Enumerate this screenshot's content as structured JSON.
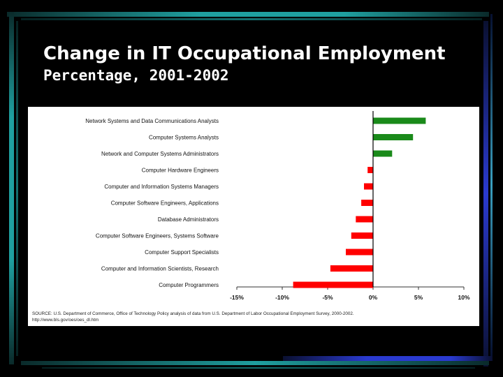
{
  "slide": {
    "title": "Change in IT Occupational Employment",
    "subtitle": "Percentage, 2001-2002",
    "source_line1": "SOURCE: U.S. Department of Commerce, Office of Technology Policy analysis of data from U.S. Department of Labor Occupational Employment Survey, 2000-2002.",
    "source_line2": "http://www.bls.gov/oes/oes_dl.htm"
  },
  "colors": {
    "background": "#000000",
    "positive": "#1a8a1a",
    "negative": "#ff0000",
    "decoration": "#1fa0a0"
  },
  "chart_data": {
    "type": "bar",
    "orientation": "horizontal",
    "title": "",
    "xlabel": "",
    "ylabel": "",
    "xlim": [
      -15,
      10
    ],
    "ticks": [
      -15,
      -10,
      -5,
      0,
      5,
      10
    ],
    "tick_labels": [
      "-15%",
      "-10%",
      "-5%",
      "0%",
      "5%",
      "10%"
    ],
    "categories": [
      "Network Systems and Data Communications Analysts",
      "Computer Systems Analysts",
      "Network and Computer Systems Administrators",
      "Computer Hardware Engineers",
      "Computer and Information Systems Managers",
      "Computer Software Engineers, Applications",
      "Database Administrators",
      "Computer Software Engineers, Systems Software",
      "Computer Support Specialists",
      "Computer and Information Scientists, Research",
      "Computer Programmers"
    ],
    "values": [
      5.8,
      4.4,
      2.1,
      -0.6,
      -1.0,
      -1.3,
      -1.9,
      -2.4,
      -3.0,
      -4.7,
      -8.8
    ],
    "grid": false,
    "legend": "none"
  }
}
